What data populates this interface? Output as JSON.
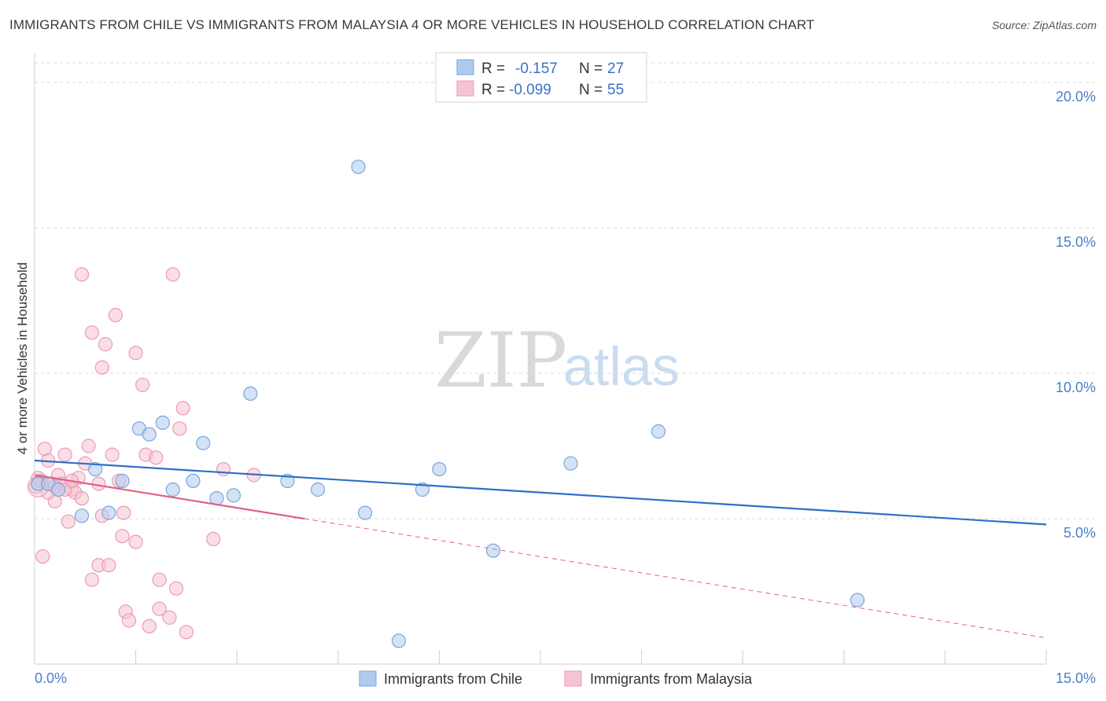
{
  "header": {
    "title": "IMMIGRANTS FROM CHILE VS IMMIGRANTS FROM MALAYSIA 4 OR MORE VEHICLES IN HOUSEHOLD CORRELATION CHART",
    "source": "Source: ZipAtlas.com"
  },
  "watermark": {
    "zip": "ZIP",
    "atlas": "atlas"
  },
  "legend": {
    "rows": [
      {
        "r_label": "R =",
        "r_value": "-0.157",
        "n_label": "N =",
        "n_value": "27"
      },
      {
        "r_label": "R =",
        "r_value": "-0.099",
        "n_label": "N =",
        "n_value": "55"
      }
    ]
  },
  "colors": {
    "chile_fill": "#aecbef",
    "chile_stroke": "#7aa6dc",
    "chile_line": "#2f6fc9",
    "malaysia_fill": "#f6c3d2",
    "malaysia_stroke": "#ec9ab4",
    "malaysia_line": "#e0608a",
    "tick_text": "#4a7fc8",
    "grid": "#d9d9d9"
  },
  "chart_data": {
    "type": "scatter",
    "title": "IMMIGRANTS FROM CHILE VS IMMIGRANTS FROM MALAYSIA 4 OR MORE VEHICLES IN HOUSEHOLD CORRELATION CHART",
    "xlabel": "",
    "ylabel": "4 or more Vehicles in Household",
    "xlim": [
      0,
      15
    ],
    "ylim": [
      0,
      21
    ],
    "x_tick_labels": [
      "0.0%",
      "15.0%"
    ],
    "y_ticks": [
      5,
      10,
      15,
      20
    ],
    "y_tick_labels": [
      "5.0%",
      "10.0%",
      "15.0%",
      "20.0%"
    ],
    "grid": true,
    "legend_position": "top-center",
    "series": [
      {
        "name": "Immigrants from Chile",
        "r": -0.157,
        "n": 27,
        "trend": {
          "x": [
            0,
            15
          ],
          "y": [
            7.0,
            4.8
          ],
          "dashed_extension": false
        },
        "points": [
          {
            "x": 0.05,
            "y": 6.2
          },
          {
            "x": 0.2,
            "y": 6.2
          },
          {
            "x": 0.35,
            "y": 6.0
          },
          {
            "x": 0.7,
            "y": 5.1
          },
          {
            "x": 0.9,
            "y": 6.7
          },
          {
            "x": 1.1,
            "y": 5.2
          },
          {
            "x": 1.3,
            "y": 6.3
          },
          {
            "x": 1.55,
            "y": 8.1
          },
          {
            "x": 1.7,
            "y": 7.9
          },
          {
            "x": 1.9,
            "y": 8.3
          },
          {
            "x": 2.05,
            "y": 6.0
          },
          {
            "x": 2.35,
            "y": 6.3
          },
          {
            "x": 2.5,
            "y": 7.6
          },
          {
            "x": 2.7,
            "y": 5.7
          },
          {
            "x": 2.95,
            "y": 5.8
          },
          {
            "x": 3.2,
            "y": 9.3
          },
          {
            "x": 3.75,
            "y": 6.3
          },
          {
            "x": 4.2,
            "y": 6.0
          },
          {
            "x": 4.8,
            "y": 17.1
          },
          {
            "x": 4.9,
            "y": 5.2
          },
          {
            "x": 5.4,
            "y": 0.8
          },
          {
            "x": 5.75,
            "y": 6.0
          },
          {
            "x": 6.0,
            "y": 6.7
          },
          {
            "x": 6.8,
            "y": 3.9
          },
          {
            "x": 7.95,
            "y": 6.9
          },
          {
            "x": 9.25,
            "y": 8.0
          },
          {
            "x": 12.2,
            "y": 2.2
          }
        ]
      },
      {
        "name": "Immigrants from Malaysia",
        "r": -0.099,
        "n": 55,
        "trend": {
          "x": [
            0,
            4.0
          ],
          "y": [
            6.5,
            5.0
          ],
          "dashed_to": {
            "x": 15,
            "y": 0.9
          }
        },
        "points": [
          {
            "x": 0.02,
            "y": 6.1
          },
          {
            "x": 0.05,
            "y": 6.4
          },
          {
            "x": 0.1,
            "y": 6.3
          },
          {
            "x": 0.12,
            "y": 3.7
          },
          {
            "x": 0.15,
            "y": 7.4
          },
          {
            "x": 0.2,
            "y": 7.0
          },
          {
            "x": 0.25,
            "y": 6.2
          },
          {
            "x": 0.3,
            "y": 5.6
          },
          {
            "x": 0.35,
            "y": 6.5
          },
          {
            "x": 0.4,
            "y": 6.2
          },
          {
            "x": 0.45,
            "y": 7.2
          },
          {
            "x": 0.5,
            "y": 4.9
          },
          {
            "x": 0.55,
            "y": 6.0
          },
          {
            "x": 0.6,
            "y": 5.9
          },
          {
            "x": 0.65,
            "y": 6.4
          },
          {
            "x": 0.7,
            "y": 5.7
          },
          {
            "x": 0.75,
            "y": 6.9
          },
          {
            "x": 0.8,
            "y": 7.5
          },
          {
            "x": 0.85,
            "y": 2.9
          },
          {
            "x": 0.85,
            "y": 11.4
          },
          {
            "x": 0.95,
            "y": 6.2
          },
          {
            "x": 0.95,
            "y": 3.4
          },
          {
            "x": 1.0,
            "y": 5.1
          },
          {
            "x": 1.0,
            "y": 10.2
          },
          {
            "x": 1.05,
            "y": 11.0
          },
          {
            "x": 1.1,
            "y": 3.4
          },
          {
            "x": 1.15,
            "y": 7.2
          },
          {
            "x": 1.2,
            "y": 12.0
          },
          {
            "x": 1.25,
            "y": 6.3
          },
          {
            "x": 1.3,
            "y": 4.4
          },
          {
            "x": 1.32,
            "y": 5.2
          },
          {
            "x": 1.35,
            "y": 1.8
          },
          {
            "x": 1.4,
            "y": 1.5
          },
          {
            "x": 1.5,
            "y": 4.2
          },
          {
            "x": 1.5,
            "y": 10.7
          },
          {
            "x": 1.6,
            "y": 9.6
          },
          {
            "x": 1.65,
            "y": 7.2
          },
          {
            "x": 1.7,
            "y": 1.3
          },
          {
            "x": 1.8,
            "y": 7.1
          },
          {
            "x": 1.85,
            "y": 2.9
          },
          {
            "x": 1.85,
            "y": 1.9
          },
          {
            "x": 2.0,
            "y": 1.6
          },
          {
            "x": 2.05,
            "y": 13.4
          },
          {
            "x": 2.1,
            "y": 2.6
          },
          {
            "x": 2.15,
            "y": 8.1
          },
          {
            "x": 2.2,
            "y": 8.8
          },
          {
            "x": 2.25,
            "y": 1.1
          },
          {
            "x": 2.65,
            "y": 4.3
          },
          {
            "x": 2.8,
            "y": 6.7
          },
          {
            "x": 3.25,
            "y": 6.5
          },
          {
            "x": 0.7,
            "y": 13.4
          },
          {
            "x": 0.45,
            "y": 6.0
          },
          {
            "x": 0.55,
            "y": 6.3
          },
          {
            "x": 0.2,
            "y": 5.9
          },
          {
            "x": 0.3,
            "y": 6.1
          }
        ]
      }
    ]
  },
  "bottom_legend": [
    "Immigrants from Chile",
    "Immigrants from Malaysia"
  ]
}
